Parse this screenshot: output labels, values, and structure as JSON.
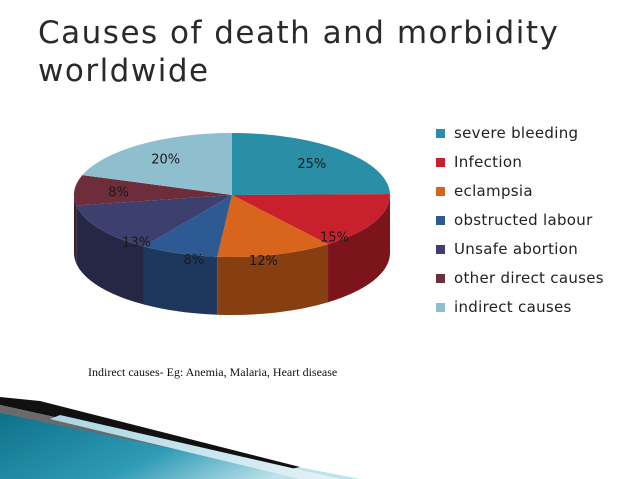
{
  "slide": {
    "title": "Causes of death and morbidity worldwide",
    "note": "Indirect causes- Eg: Anemia, Malaria, Heart disease"
  },
  "chart_data": {
    "type": "pie",
    "categories": [
      "severe bleeding",
      "Infection",
      "eclampsia",
      "obstructed labour",
      "Unsafe abortion",
      "other direct causes",
      "indirect causes"
    ],
    "values": [
      25,
      15,
      12,
      8,
      13,
      8,
      20
    ],
    "data_labels": [
      "25%",
      "15%",
      "12%",
      "8%",
      "13%",
      "8%",
      "20%"
    ],
    "colors": [
      "#2a8ea6",
      "#c8202c",
      "#d9641c",
      "#2e5a94",
      "#3d3f6e",
      "#6e2d3a",
      "#8fbfcf"
    ],
    "legend_position": "right",
    "style": "3d"
  }
}
